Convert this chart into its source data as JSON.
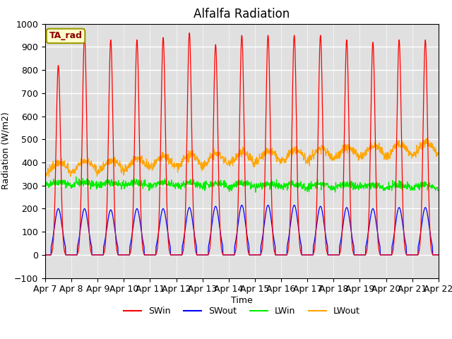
{
  "title": "Alfalfa Radiation",
  "ylabel": "Radiation (W/m2)",
  "xlabel": "Time",
  "legend_label": "TA_rad",
  "series_labels": [
    "SWin",
    "SWout",
    "LWin",
    "LWout"
  ],
  "series_colors": [
    "red",
    "blue",
    "#00ee00",
    "orange"
  ],
  "ylim": [
    -100,
    1000
  ],
  "days": 15,
  "background_color": "#e0e0e0",
  "swin_peak_values": [
    820,
    950,
    930,
    930,
    940,
    960,
    910,
    950,
    950,
    950,
    950,
    930,
    920,
    930,
    930
  ],
  "swout_peak_values": [
    200,
    200,
    195,
    200,
    200,
    205,
    210,
    215,
    215,
    215,
    210,
    205,
    200,
    205,
    205
  ],
  "tick_labels": [
    "Apr 7",
    "Apr 8",
    "Apr 9",
    "Apr 10",
    "Apr 11",
    "Apr 12",
    "Apr 13",
    "Apr 14",
    "Apr 15",
    "Apr 16",
    "Apr 17",
    "Apr 18",
    "Apr 19",
    "Apr 20",
    "Apr 21",
    "Apr 22"
  ]
}
